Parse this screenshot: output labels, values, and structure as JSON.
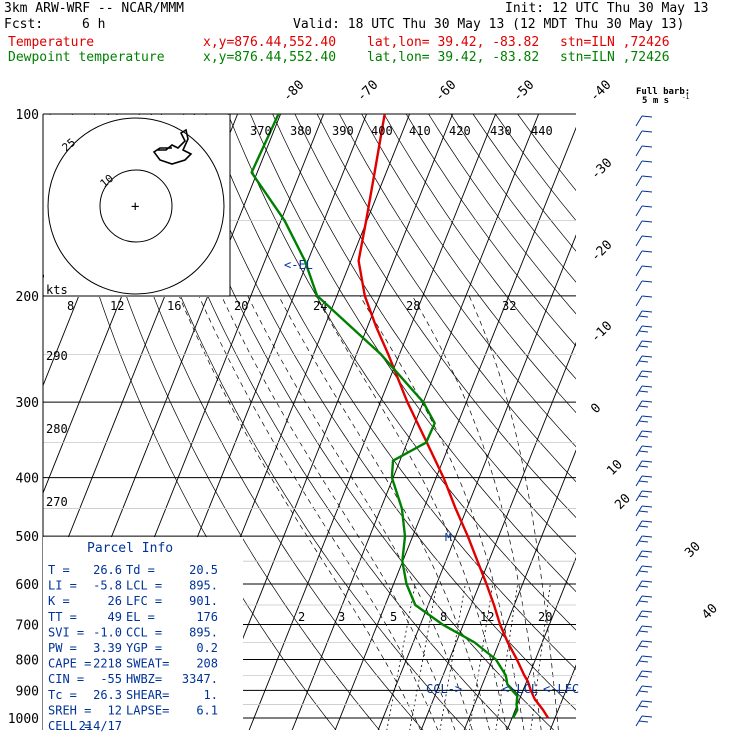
{
  "header": {
    "model": "3km ARW-WRF -- NCAR/MMM",
    "init": "Init: 12 UTC Thu 30 May 13",
    "fcst_label": "Fcst:",
    "fcst_value": "6 h",
    "valid": "Valid: 18 UTC Thu 30 May 13 (12 MDT Thu 30 May 13)",
    "temp_line": {
      "name": "Temperature",
      "xy": "x,y=876.44,552.40",
      "latlon": "lat,lon= 39.42, -83.82",
      "stn": "stn=ILN ,72426"
    },
    "dew_line": {
      "name": "Dewpoint temperature",
      "xy": "x,y=876.44,552.40",
      "latlon": "lat,lon= 39.42, -83.82",
      "stn": "stn=ILN ,72426"
    }
  },
  "barb_legend": {
    "title": "Full barb:",
    "value": "5 m s",
    "exp": "-1"
  },
  "parcel_info": {
    "title": "Parcel Info",
    "rows": [
      [
        "T  =",
        "26.6",
        "Td =",
        "20.5"
      ],
      [
        "LI =",
        "-5.8",
        "LCL =",
        "895."
      ],
      [
        "K  =",
        "26",
        "LFC =",
        "901."
      ],
      [
        "TT =",
        "49",
        "EL =",
        "176"
      ],
      [
        "SVI =",
        "-1.0",
        "CCL =",
        "895."
      ],
      [
        "PW =",
        "3.39",
        "YGP =",
        "0.2"
      ],
      [
        "CAPE =",
        "2218",
        "SWEAT=",
        "208"
      ],
      [
        "CIN =",
        "-55",
        "HWBZ=",
        "3347."
      ],
      [
        "Tc =",
        "26.3",
        "SHEAR=",
        "1."
      ],
      [
        "SREH =",
        "12",
        "LAPSE=",
        "6.1"
      ],
      [
        "CELL =",
        "214/17",
        "",
        ""
      ]
    ]
  },
  "annotations": {
    "el": "<-EL",
    "ccl": "CCL->",
    "lcl": "<-LCL",
    "lfc": "<-LFC",
    "hodo_units": "kts",
    "hodo_rings": [
      "10",
      "25"
    ],
    "hodo_center": "+",
    "hodo_speed_ticks": [
      "8",
      "12",
      "16",
      "20",
      "24",
      "28",
      "32"
    ],
    "mixing_ratio_labels": [
      "2",
      "3",
      "5",
      "8",
      "12",
      "20"
    ],
    "theta_labels": [
      "370",
      "380",
      "390",
      "400",
      "410",
      "420",
      "430",
      "440"
    ],
    "theta_side_labels": [
      "290",
      "280",
      "270"
    ],
    "mark_m": "M"
  },
  "chart_data": {
    "type": "line",
    "title": "",
    "xlabel": "",
    "ylabel": "",
    "y_scale": "log pressure (inverted)",
    "ylim": [
      1000,
      100
    ],
    "pressure_ticks": [
      100,
      200,
      300,
      400,
      500,
      600,
      700,
      800,
      900,
      1000
    ],
    "isotherm_labels_top": [
      -80,
      -70,
      -60,
      -50,
      -40
    ],
    "isotherm_labels_right": [
      -30,
      -20,
      -10,
      0,
      10,
      20,
      30,
      40
    ],
    "series": [
      {
        "name": "Temperature",
        "color": "#e00000",
        "pressure": [
          1000,
          970,
          950,
          930,
          900,
          870,
          850,
          800,
          750,
          700,
          650,
          600,
          550,
          500,
          450,
          400,
          350,
          300,
          250,
          225,
          200,
          175,
          150,
          125,
          100
        ],
        "temperature": [
          28.4,
          26.5,
          25.0,
          23.5,
          21.8,
          20.3,
          18.9,
          15.7,
          12.0,
          8.5,
          5.3,
          1.6,
          -2.6,
          -7.2,
          -12.6,
          -18.3,
          -25.4,
          -33.7,
          -42.6,
          -48.0,
          -53.5,
          -58.2,
          -60.2,
          -62.7,
          -65.8
        ]
      },
      {
        "name": "Dewpoint temperature",
        "color": "#008000",
        "pressure": [
          1000,
          970,
          950,
          920,
          900,
          880,
          850,
          800,
          750,
          700,
          650,
          600,
          550,
          500,
          450,
          400,
          375,
          350,
          325,
          300,
          250,
          200,
          175,
          150,
          125,
          100
        ],
        "temperature": [
          20.2,
          20.5,
          19.8,
          19.2,
          17.5,
          15.8,
          14.6,
          10.8,
          4.3,
          -4.9,
          -13.0,
          -17.0,
          -20.1,
          -21.8,
          -25.1,
          -30.3,
          -31.6,
          -25.6,
          -25.4,
          -30.0,
          -44.3,
          -64.6,
          -70.7,
          -79.2,
          -91.3,
          -90.5
        ]
      }
    ],
    "hodograph_speed_rings_kts": [
      10,
      25
    ],
    "wind_barbs": "right column, 100-1000 hPa"
  }
}
